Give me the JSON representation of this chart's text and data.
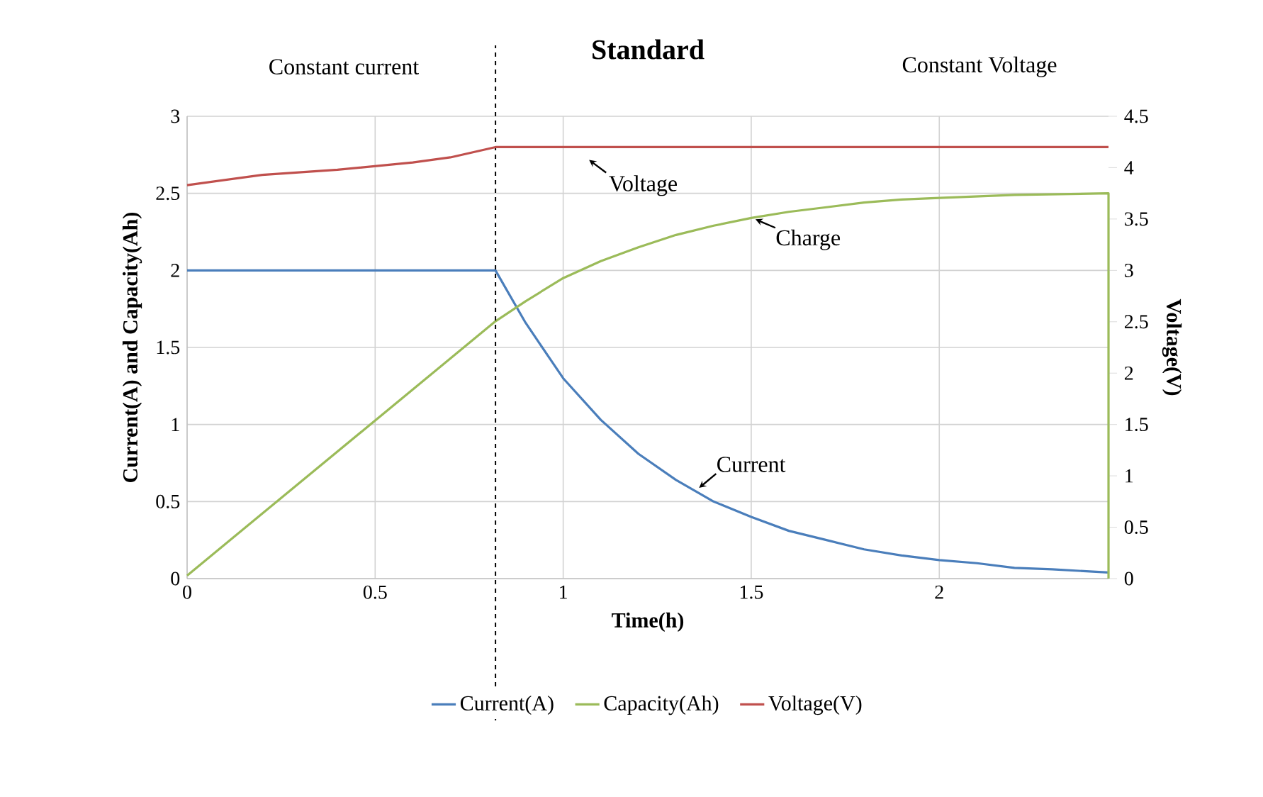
{
  "chart_data": {
    "type": "line",
    "title": "Standard",
    "xlabel": "Time(h)",
    "ylabel": "Current(A) and Capacity(Ah)",
    "y2label": "Voltage(V)",
    "xlim": [
      0,
      2.45
    ],
    "xticks": [
      0,
      0.5,
      1,
      1.5,
      2
    ],
    "ylim": [
      0,
      3
    ],
    "yticks": [
      0,
      0.5,
      1,
      1.5,
      2,
      2.5,
      3
    ],
    "y2lim": [
      0,
      4.5
    ],
    "y2ticks": [
      0,
      0.5,
      1,
      1.5,
      2,
      2.5,
      3,
      3.5,
      4,
      4.5
    ],
    "grid": true,
    "legend": "bottom",
    "marker": "none",
    "line_style": "solid",
    "series": [
      {
        "name": "Current(A)",
        "color": "#4a7ebb",
        "x": [
          0,
          0.82,
          0.9,
          1.0,
          1.1,
          1.2,
          1.3,
          1.4,
          1.5,
          1.6,
          1.7,
          1.8,
          1.9,
          2.0,
          2.1,
          2.2,
          2.3,
          2.45
        ],
        "values": [
          2,
          2,
          1.66,
          1.3,
          1.03,
          0.81,
          0.64,
          0.5,
          0.4,
          0.31,
          0.25,
          0.19,
          0.15,
          0.12,
          0.1,
          0.07,
          0.06,
          0.04
        ]
      },
      {
        "name": "Capacity(Ah)",
        "color": "#9bbb59",
        "x": [
          0,
          0.82,
          0.9,
          1.0,
          1.1,
          1.2,
          1.3,
          1.4,
          1.5,
          1.6,
          1.7,
          1.8,
          1.9,
          2.0,
          2.2,
          2.45,
          2.45
        ],
        "values": [
          0.02,
          1.67,
          1.8,
          1.95,
          2.06,
          2.15,
          2.23,
          2.29,
          2.34,
          2.38,
          2.41,
          2.44,
          2.46,
          2.47,
          2.49,
          2.5,
          0
        ]
      },
      {
        "name": "Voltage(V)",
        "color": "#c0504d",
        "axis": "y2",
        "x": [
          0,
          0.2,
          0.4,
          0.6,
          0.7,
          0.82,
          2.45
        ],
        "values": [
          3.83,
          3.93,
          3.98,
          4.05,
          4.1,
          4.2,
          4.2
        ]
      }
    ],
    "ref_lines": [
      {
        "axis": "x",
        "value": 0.82,
        "color": "#000000",
        "line_style": "dashed"
      }
    ],
    "annotations": [
      "Constant current",
      "Constant Voltage",
      "Voltage",
      {
        "text": "Charge",
        "x": 1.5,
        "y": 2.35
      },
      {
        "text": "Current",
        "x": 1.35,
        "y": 0.57
      }
    ]
  }
}
